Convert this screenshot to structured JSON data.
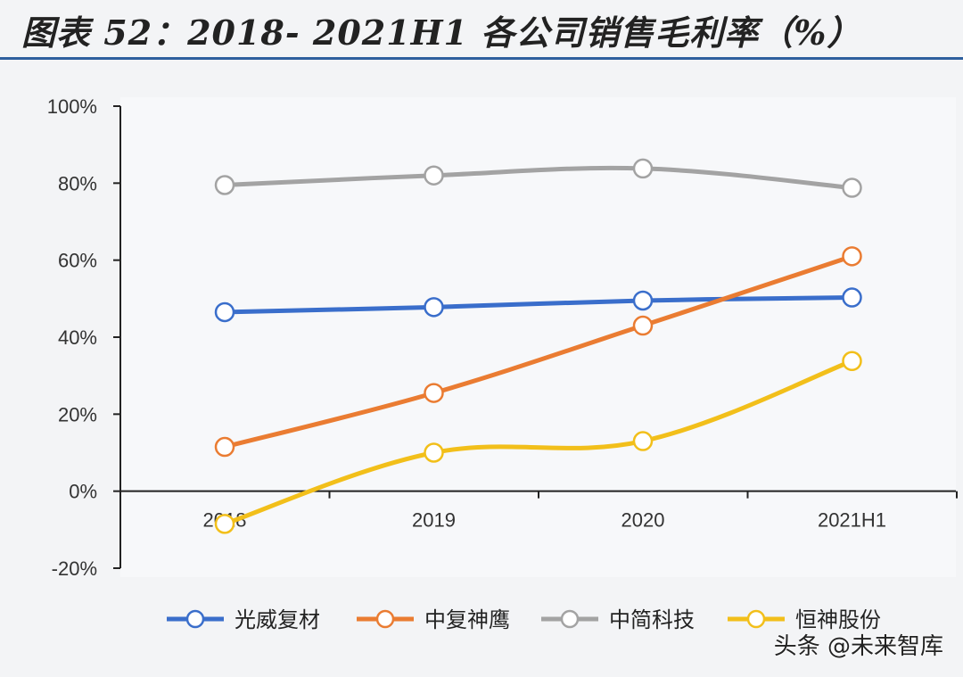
{
  "chart_data": {
    "type": "line",
    "title": "图表 52：2018- 2021H1 各公司销售毛利率（%）",
    "categories": [
      "2018",
      "2019",
      "2020",
      "2021H1"
    ],
    "ylim": [
      -20,
      100
    ],
    "yticks": [
      -20,
      0,
      20,
      40,
      60,
      80,
      100
    ],
    "ytick_suffix": "%",
    "xlabel": "",
    "ylabel": "",
    "legend_position": "bottom",
    "series": [
      {
        "name": "光威复材",
        "color": "#3a6ecb",
        "values": [
          46.5,
          47.8,
          49.5,
          50.3
        ]
      },
      {
        "name": "中复神鹰",
        "color": "#ea7c32",
        "values": [
          11.5,
          25.5,
          43.0,
          61.0
        ]
      },
      {
        "name": "中简科技",
        "color": "#a3a3a3",
        "values": [
          79.5,
          82.0,
          83.8,
          78.8
        ]
      },
      {
        "name": "恒神股份",
        "color": "#f2bf1a",
        "values": [
          -8.5,
          10.0,
          13.0,
          33.8
        ]
      }
    ]
  },
  "watermark": "头条 @未来智库"
}
